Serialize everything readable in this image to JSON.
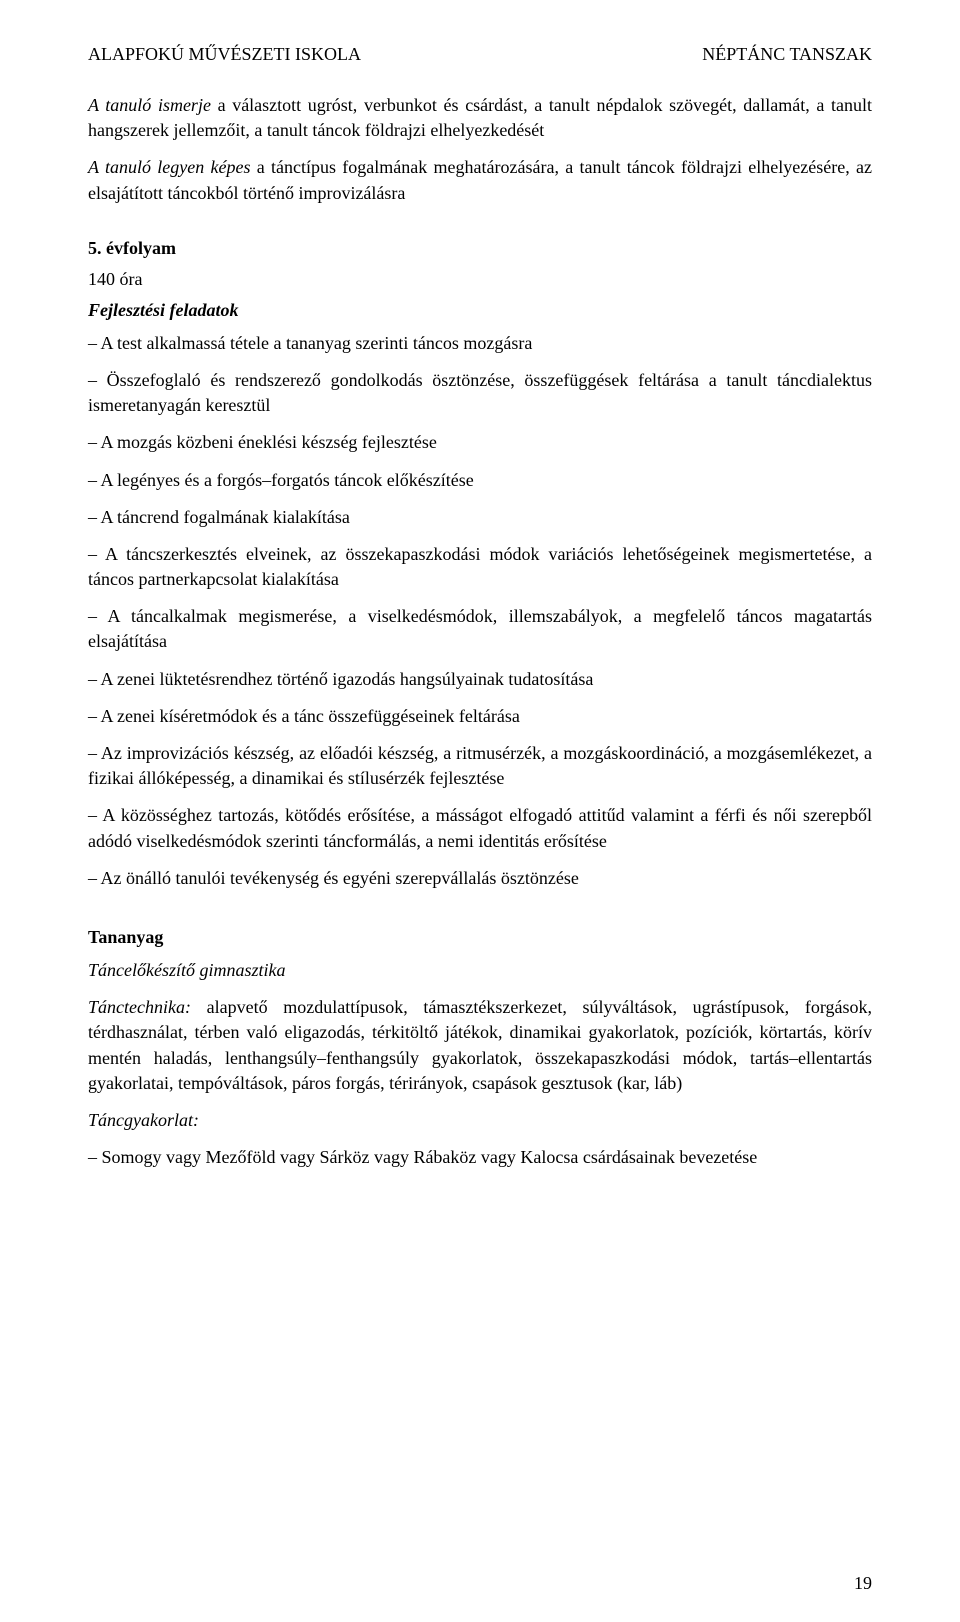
{
  "header": {
    "left": "ALAPFOKÚ MŰVÉSZETI ISKOLA",
    "right": "NÉPTÁNC TANSZAK"
  },
  "intro_para1_a": "A tanuló ismerje",
  "intro_para1_b": " a választott ugróst, verbunkot és csárdást, a tanult népdalok szövegét, dallamát, a tanult hangszerek jellemzőit, a tanult táncok földrajzi elhelyezkedését",
  "intro_para2_a": "A tanuló legyen képes",
  "intro_para2_b": " a tánctípus fogalmának meghatározására, a tanult táncok földrajzi elhelyezésére, az elsajátított táncokból történő improvizálásra",
  "grade": "5. évfolyam",
  "hours": "140 óra",
  "dev_head": "Fejlesztési feladatok",
  "dev_items": [
    "– A test alkalmassá tétele a tananyag szerinti táncos mozgásra",
    "– Összefoglaló és rendszerező gondolkodás ösztönzése, összefüggések feltárása a tanult táncdialektus ismeretanyagán keresztül",
    "– A mozgás közbeni éneklési készség fejlesztése",
    "– A legényes és a forgós–forgatós táncok előkészítése",
    "– A táncrend fogalmának kialakítása",
    "– A táncszerkesztés elveinek, az összekapaszkodási módok variációs lehetőségeinek megismertetése, a táncos partnerkapcsolat kialakítása",
    "– A táncalkalmak megismerése, a viselkedésmódok, illemszabályok, a megfelelő táncos magatartás elsajátítása",
    "– A zenei lüktetésrendhez történő igazodás hangsúlyainak tudatosítása",
    "– A zenei kíséretmódok és a tánc összefüggéseinek feltárása",
    "– Az improvizációs készség, az előadói készség, a ritmusérzék, a mozgáskoordináció, a mozgásemlékezet, a fizikai állóképesség, a dinamikai és stílusérzék fejlesztése",
    "– A közösséghez tartozás, kötődés erősítése, a másságot elfogadó attitűd valamint a férfi és női szerepből adódó viselkedésmódok szerinti táncformálás, a nemi identitás erősítése",
    "– Az önálló tanulói tevékenység és egyéni szerepvállalás ösztönzése"
  ],
  "tanany_head": "Tananyag",
  "tancelo_head": "Táncelőkészítő gimnasztika",
  "tanctech_label": "Tánctechnika:",
  "tanctech_body": " alapvető mozdulattípusok, támasztékszerkezet, súlyváltások, ugrástípusok, forgások, térdhasználat, térben való eligazodás, térkitöltő játékok, dinamikai gyakorlatok, pozíciók, körtartás, körív mentén haladás, lenthangsúly–fenthangsúly gyakorlatok, összekapaszkodási módok, tartás–ellentartás gyakorlatai, tempóváltások, páros forgás, térirányok, csapások gesztusok (kar, láb)",
  "tancgyak_head": "Táncgyakorlat:",
  "tancgyak_item": "– Somogy vagy Mezőföld vagy Sárköz vagy Rábaköz vagy Kalocsa csárdásainak bevezetése",
  "page_number": "19"
}
